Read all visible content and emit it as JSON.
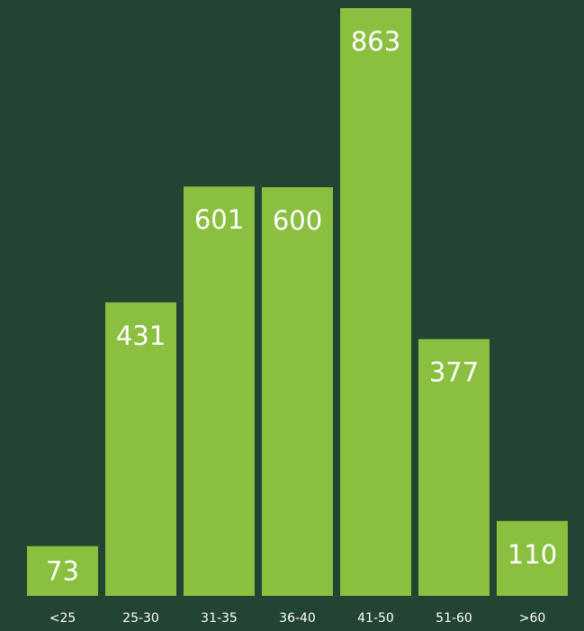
{
  "chart_data": {
    "type": "bar",
    "categories": [
      "<25",
      "25-30",
      "31-35",
      "36-40",
      "41-50",
      "51-60",
      ">60"
    ],
    "values": [
      73,
      431,
      601,
      600,
      863,
      377,
      110
    ],
    "color": "#8bbf3f",
    "background": "#234432"
  }
}
